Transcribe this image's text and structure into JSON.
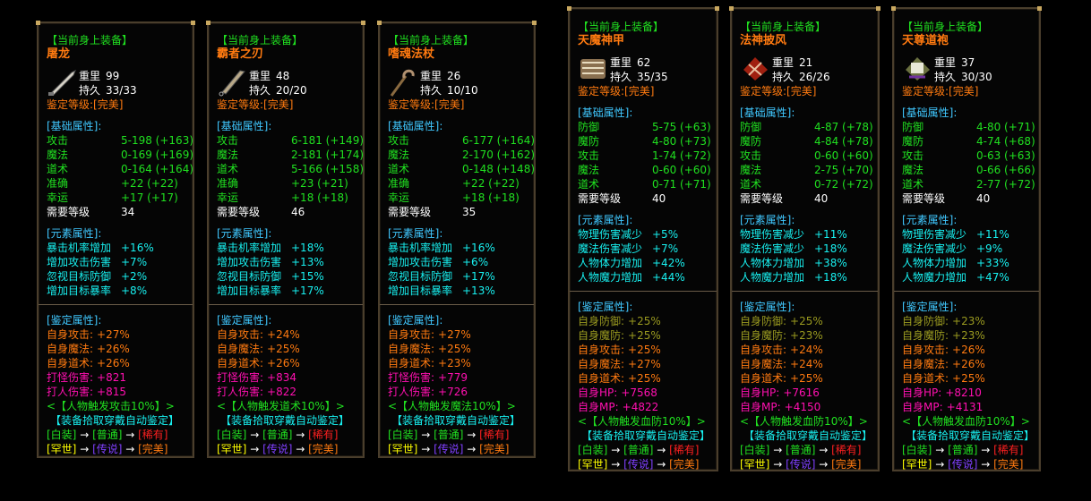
{
  "common": {
    "header": "【当前身上装备】",
    "weight_label": "重里",
    "durability_label": "持久",
    "grade": "鉴定等级:[完美]",
    "basic_title": "[基础属性]:",
    "element_title": "[元素属性]:",
    "identify_title": "[鉴定属性]:",
    "required_level_label": "需要等级",
    "auto_identify": "【装备拾取穿戴自动鉴定】",
    "tiers_row1": [
      {
        "text": "[白装]",
        "color": "#20e020"
      },
      {
        "text": " → ",
        "color": "#ffffff"
      },
      {
        "text": "[普通]",
        "color": "#20e020"
      },
      {
        "text": " → ",
        "color": "#ffffff"
      },
      {
        "text": "[稀有]",
        "color": "#ff2020"
      }
    ],
    "tiers_row2": [
      {
        "text": "[罕世]",
        "color": "#ffff00"
      },
      {
        "text": " → ",
        "color": "#ffffff"
      },
      {
        "text": "[传说]",
        "color": "#8040ff"
      },
      {
        "text": " → ",
        "color": "#ffffff"
      },
      {
        "text": "[完美]",
        "color": "#ff7a10"
      }
    ]
  },
  "colors": {
    "orange": "#ff7a10",
    "olive": "#9a9a20",
    "magenta": "#ff10b0",
    "green": "#20e020",
    "cyan": "#18f0f0"
  },
  "panels": [
    {
      "variant": "A",
      "name": "屠龙",
      "icon": "sword-icon",
      "weight": "99",
      "durability": "33/33",
      "basic": [
        {
          "label": "攻击",
          "value": "5-198 (+163)"
        },
        {
          "label": "魔法",
          "value": "0-169 (+169)"
        },
        {
          "label": "道术",
          "value": "0-164 (+164)"
        },
        {
          "label": "准确",
          "value": "+22 (+22)"
        },
        {
          "label": "幸运",
          "value": "+17 (+17)"
        }
      ],
      "required_level": "34",
      "element": [
        {
          "label": "暴击机率增加",
          "value": "+16%"
        },
        {
          "label": "增加攻击伤害",
          "value": "+7%"
        },
        {
          "label": "忽视目标防御",
          "value": "+2%"
        },
        {
          "label": "增加目标暴率",
          "value": "+8%"
        }
      ],
      "identify": [
        {
          "label": "自身攻击:",
          "value": "+27%",
          "color": "orange"
        },
        {
          "label": "自身魔法:",
          "value": "+26%",
          "color": "orange"
        },
        {
          "label": "自身道术:",
          "value": "+26%",
          "color": "orange"
        },
        {
          "label": "打怪伤害:",
          "value": "+821",
          "color": "magenta"
        },
        {
          "label": "打人伤害:",
          "value": "+815",
          "color": "magenta"
        }
      ],
      "trigger": "<【人物触发攻击10%】>"
    },
    {
      "variant": "A",
      "name": "霸者之刃",
      "icon": "blade-icon",
      "weight": "48",
      "durability": "20/20",
      "basic": [
        {
          "label": "攻击",
          "value": "6-181 (+149)"
        },
        {
          "label": "魔法",
          "value": "2-181 (+174)"
        },
        {
          "label": "道术",
          "value": "5-166 (+158)"
        },
        {
          "label": "准确",
          "value": "+23 (+21)"
        },
        {
          "label": "幸运",
          "value": "+18 (+18)"
        }
      ],
      "required_level": "46",
      "element": [
        {
          "label": "暴击机率增加",
          "value": "+18%"
        },
        {
          "label": "增加攻击伤害",
          "value": "+13%"
        },
        {
          "label": "忽视目标防御",
          "value": "+15%"
        },
        {
          "label": "增加目标暴率",
          "value": "+17%"
        }
      ],
      "identify": [
        {
          "label": "自身攻击:",
          "value": "+24%",
          "color": "orange"
        },
        {
          "label": "自身魔法:",
          "value": "+25%",
          "color": "orange"
        },
        {
          "label": "自身道术:",
          "value": "+26%",
          "color": "orange"
        },
        {
          "label": "打怪伤害:",
          "value": "+834",
          "color": "magenta"
        },
        {
          "label": "打人伤害:",
          "value": "+822",
          "color": "magenta"
        }
      ],
      "trigger": "<【人物触发道术10%】>"
    },
    {
      "variant": "A",
      "name": "嗜魂法杖",
      "icon": "staff-icon",
      "weight": "26",
      "durability": "10/10",
      "basic": [
        {
          "label": "攻击",
          "value": "6-177 (+164)"
        },
        {
          "label": "魔法",
          "value": "2-170 (+162)"
        },
        {
          "label": "道术",
          "value": "0-148 (+148)"
        },
        {
          "label": "准确",
          "value": "+22 (+22)"
        },
        {
          "label": "幸运",
          "value": "+18 (+18)"
        }
      ],
      "required_level": "35",
      "element": [
        {
          "label": "暴击机率增加",
          "value": "+16%"
        },
        {
          "label": "增加攻击伤害",
          "value": "+6%"
        },
        {
          "label": "忽视目标防御",
          "value": "+17%"
        },
        {
          "label": "增加目标暴率",
          "value": "+13%"
        }
      ],
      "identify": [
        {
          "label": "自身攻击:",
          "value": "+27%",
          "color": "orange"
        },
        {
          "label": "自身魔法:",
          "value": "+25%",
          "color": "orange"
        },
        {
          "label": "自身道术:",
          "value": "+23%",
          "color": "orange"
        },
        {
          "label": "打怪伤害:",
          "value": "+779",
          "color": "magenta"
        },
        {
          "label": "打人伤害:",
          "value": "+726",
          "color": "magenta"
        }
      ],
      "trigger": "<【人物触发魔法10%】>"
    },
    {
      "variant": "B",
      "name": "天魔神甲",
      "icon": "armor-icon",
      "weight": "62",
      "durability": "35/35",
      "basic": [
        {
          "label": "防御",
          "value": "5-75 (+63)"
        },
        {
          "label": "魔防",
          "value": "4-80 (+73)"
        },
        {
          "label": "攻击",
          "value": "1-74 (+72)"
        },
        {
          "label": "魔法",
          "value": "0-60 (+60)"
        },
        {
          "label": "道术",
          "value": "0-71 (+71)"
        }
      ],
      "required_level": "40",
      "element": [
        {
          "label": "物理伤害减少",
          "value": "+5%"
        },
        {
          "label": "魔法伤害减少",
          "value": "+7%"
        },
        {
          "label": "人物体力增加",
          "value": "+42%"
        },
        {
          "label": "人物魔力增加",
          "value": "+44%"
        }
      ],
      "identify": [
        {
          "label": "自身防御:",
          "value": "+25%",
          "color": "olive"
        },
        {
          "label": "自身魔防:",
          "value": "+25%",
          "color": "olive"
        },
        {
          "label": "自身攻击:",
          "value": "+25%",
          "color": "orange"
        },
        {
          "label": "自身魔法:",
          "value": "+27%",
          "color": "orange"
        },
        {
          "label": "自身道术:",
          "value": "+25%",
          "color": "orange"
        },
        {
          "label": "自身HP:",
          "value": "+7568",
          "color": "magenta"
        },
        {
          "label": "自身MP:",
          "value": "+4822",
          "color": "magenta"
        }
      ],
      "trigger": "<【人物触发血防10%】>"
    },
    {
      "variant": "B",
      "name": "法神披风",
      "icon": "robe-red-icon",
      "weight": "21",
      "durability": "26/26",
      "basic": [
        {
          "label": "防御",
          "value": "4-87 (+78)"
        },
        {
          "label": "魔防",
          "value": "4-84 (+78)"
        },
        {
          "label": "攻击",
          "value": "0-60 (+60)"
        },
        {
          "label": "魔法",
          "value": "2-75 (+70)"
        },
        {
          "label": "道术",
          "value": "0-72 (+72)"
        }
      ],
      "required_level": "40",
      "element": [
        {
          "label": "物理伤害减少",
          "value": "+11%"
        },
        {
          "label": "魔法伤害减少",
          "value": "+18%"
        },
        {
          "label": "人物体力增加",
          "value": "+38%"
        },
        {
          "label": "人物魔力增加",
          "value": "+18%"
        }
      ],
      "identify": [
        {
          "label": "自身防御:",
          "value": "+25%",
          "color": "olive"
        },
        {
          "label": "自身魔防:",
          "value": "+23%",
          "color": "olive"
        },
        {
          "label": "自身攻击:",
          "value": "+24%",
          "color": "orange"
        },
        {
          "label": "自身魔法:",
          "value": "+24%",
          "color": "orange"
        },
        {
          "label": "自身道术:",
          "value": "+25%",
          "color": "orange"
        },
        {
          "label": "自身HP:",
          "value": "+7616",
          "color": "magenta"
        },
        {
          "label": "自身MP:",
          "value": "+4150",
          "color": "magenta"
        }
      ],
      "trigger": "<【人物触发血防10%】>"
    },
    {
      "variant": "B",
      "name": "天尊道袍",
      "icon": "robe-purple-icon",
      "weight": "37",
      "durability": "30/30",
      "basic": [
        {
          "label": "防御",
          "value": "4-80 (+71)"
        },
        {
          "label": "魔防",
          "value": "4-74 (+68)"
        },
        {
          "label": "攻击",
          "value": "0-63 (+63)"
        },
        {
          "label": "魔法",
          "value": "0-66 (+66)"
        },
        {
          "label": "道术",
          "value": "2-77 (+72)"
        }
      ],
      "required_level": "40",
      "element": [
        {
          "label": "物理伤害减少",
          "value": "+11%"
        },
        {
          "label": "魔法伤害减少",
          "value": "+9%"
        },
        {
          "label": "人物体力增加",
          "value": "+33%"
        },
        {
          "label": "人物魔力增加",
          "value": "+47%"
        }
      ],
      "identify": [
        {
          "label": "自身防御:",
          "value": "+23%",
          "color": "olive"
        },
        {
          "label": "自身魔防:",
          "value": "+23%",
          "color": "olive"
        },
        {
          "label": "自身攻击:",
          "value": "+26%",
          "color": "orange"
        },
        {
          "label": "自身魔法:",
          "value": "+26%",
          "color": "orange"
        },
        {
          "label": "自身道术:",
          "value": "+25%",
          "color": "orange"
        },
        {
          "label": "自身HP:",
          "value": "+8210",
          "color": "magenta"
        },
        {
          "label": "自身MP:",
          "value": "+4131",
          "color": "magenta"
        }
      ],
      "trigger": "<【人物触发血防10%】>"
    }
  ]
}
